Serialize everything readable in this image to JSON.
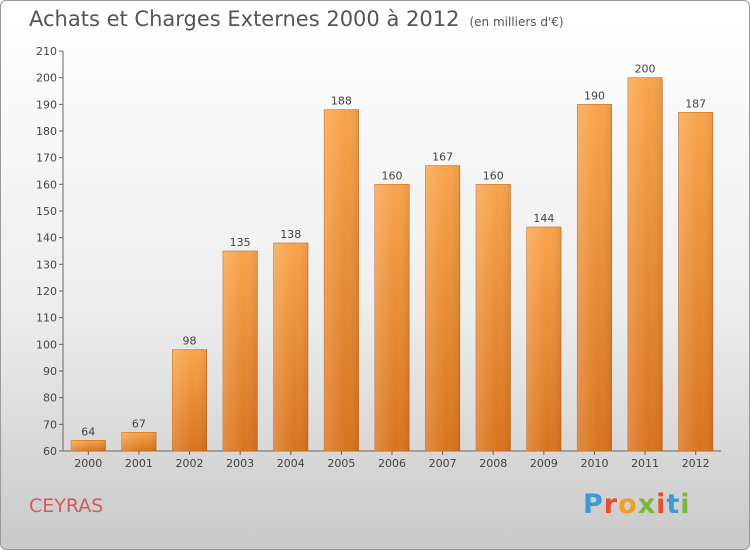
{
  "header": {
    "title": "Achats et Charges Externes 2000 à 2012",
    "subtitle": "(en milliers d'€)"
  },
  "footer": {
    "commune": "CEYRAS",
    "logo_text": "Proxiti"
  },
  "colors": {
    "bar_top": "#f8a44c",
    "bar_bottom": "#d8741e",
    "commune": "#d45a5a",
    "logo": [
      "#3a9bd6",
      "#e94e2b",
      "#f0a020",
      "#7ab83a",
      "#e94e2b",
      "#3a9bd6",
      "#7ab83a"
    ]
  },
  "chart_data": {
    "type": "bar",
    "title": "Achats et Charges Externes 2000 à 2012",
    "subtitle": "(en milliers d'€)",
    "xlabel": "",
    "ylabel": "",
    "categories": [
      "2000",
      "2001",
      "2002",
      "2003",
      "2004",
      "2005",
      "2006",
      "2007",
      "2008",
      "2009",
      "2010",
      "2011",
      "2012"
    ],
    "values": [
      64,
      67,
      98,
      135,
      138,
      188,
      160,
      167,
      160,
      144,
      190,
      200,
      187
    ],
    "ylim": [
      60,
      210
    ],
    "yticks": [
      60,
      70,
      80,
      90,
      100,
      110,
      120,
      130,
      140,
      150,
      160,
      170,
      180,
      190,
      200,
      210
    ],
    "grid": false,
    "data_labels": true
  }
}
